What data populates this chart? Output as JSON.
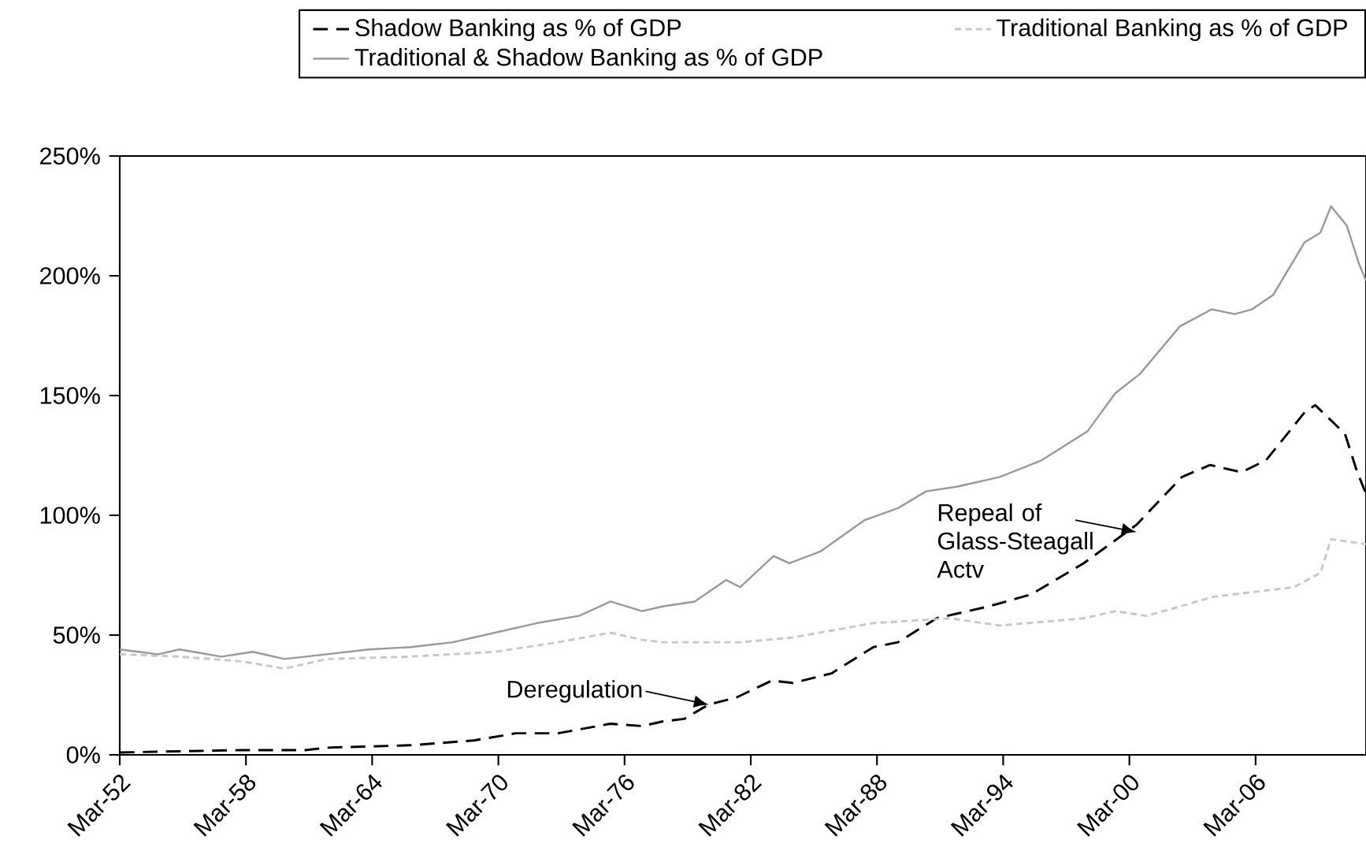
{
  "chart_data": {
    "type": "line",
    "xlim": [
      "1952-03",
      "2011-06"
    ],
    "xticks": [
      {
        "value": "1952-03",
        "label": "Mar-52"
      },
      {
        "value": "1958-03",
        "label": "Mar-58"
      },
      {
        "value": "1964-03",
        "label": "Mar-64"
      },
      {
        "value": "1970-03",
        "label": "Mar-70"
      },
      {
        "value": "1976-03",
        "label": "Mar-76"
      },
      {
        "value": "1982-03",
        "label": "Mar-82"
      },
      {
        "value": "1988-03",
        "label": "Mar-88"
      },
      {
        "value": "1994-03",
        "label": "Mar-94"
      },
      {
        "value": "2000-03",
        "label": "Mar-00"
      },
      {
        "value": "2006-03",
        "label": "Mar-06"
      }
    ],
    "ylim": [
      0,
      250
    ],
    "yticks": [
      {
        "value": 0,
        "label": "0%"
      },
      {
        "value": 50,
        "label": "50%"
      },
      {
        "value": 100,
        "label": "100%"
      },
      {
        "value": 150,
        "label": "150%"
      },
      {
        "value": 200,
        "label": "200%"
      },
      {
        "value": 250,
        "label": "250%"
      }
    ],
    "legend": "top",
    "grid": false,
    "marker": "none",
    "series": [
      {
        "name": "Shadow Banking as % of GDP",
        "color": "#000000",
        "line_style": "dashed",
        "x": [
          "1952-03",
          "1958-01",
          "1961-01",
          "1962-01",
          "1966-01",
          "1969-01",
          "1971-01",
          "1973-01",
          "1975-07",
          "1977-01",
          "1978-01",
          "1979-01",
          "1980-03",
          "1981-07",
          "1983-03",
          "1984-03",
          "1986-01",
          "1988-01",
          "1989-03",
          "1991-01",
          "1993-07",
          "1995-07",
          "1998-01",
          "2000-07",
          "2002-09",
          "2004-01",
          "2005-07",
          "2006-09",
          "2008-07",
          "2009-01",
          "2010-06",
          "2011-01",
          "2011-06"
        ],
        "values": [
          1,
          2,
          2,
          3,
          4,
          6,
          9,
          9,
          13,
          12,
          14,
          15,
          21,
          24,
          31,
          30,
          34,
          45,
          47,
          57,
          62,
          67,
          80,
          96,
          116,
          121,
          118,
          123,
          143,
          146,
          134,
          118,
          109
        ]
      },
      {
        "name": "Traditional Banking as % of GDP",
        "color": "#c8c8c8",
        "line_style": "dotted",
        "x": [
          "1952-03",
          "1955-01",
          "1958-01",
          "1960-01",
          "1962-01",
          "1966-01",
          "1970-01",
          "1973-01",
          "1975-07",
          "1977-01",
          "1978-01",
          "1981-09",
          "1984-03",
          "1988-01",
          "1991-09",
          "1994-01",
          "1998-01",
          "1999-07",
          "2001-01",
          "2004-03",
          "2008-01",
          "2009-04",
          "2009-10",
          "2011-06"
        ],
        "values": [
          42,
          41,
          39,
          36,
          40,
          41,
          43,
          47,
          51,
          48,
          47,
          47,
          49,
          55,
          57,
          54,
          57,
          60,
          58,
          66,
          70,
          76,
          90,
          88
        ]
      },
      {
        "name": "Traditional & Shadow Banking as % of GDP",
        "color": "#999999",
        "line_style": "solid",
        "x": [
          "1952-03",
          "1954-01",
          "1955-01",
          "1957-01",
          "1958-07",
          "1960-01",
          "1962-01",
          "1964-01",
          "1966-01",
          "1968-01",
          "1970-01",
          "1972-01",
          "1974-01",
          "1975-07",
          "1977-01",
          "1978-01",
          "1979-07",
          "1980-03",
          "1981-01",
          "1981-09",
          "1983-04",
          "1984-01",
          "1985-07",
          "1987-08",
          "1989-03",
          "1990-07",
          "1992-01",
          "1994-01",
          "1996-01",
          "1998-03",
          "1999-07",
          "2000-09",
          "2002-08",
          "2004-02",
          "2005-03",
          "2006-01",
          "2007-01",
          "2008-07",
          "2009-04",
          "2009-10",
          "2010-07",
          "2011-02",
          "2011-06"
        ],
        "values": [
          44,
          42,
          44,
          41,
          43,
          40,
          42,
          44,
          45,
          47,
          51,
          55,
          58,
          64,
          60,
          62,
          64,
          68,
          73,
          70,
          83,
          80,
          85,
          98,
          103,
          110,
          112,
          116,
          123,
          135,
          151,
          159,
          179,
          186,
          184,
          186,
          192,
          214,
          218,
          229,
          221,
          205,
          198
        ]
      }
    ],
    "annotations": [
      {
        "text": "Deregulation",
        "x": "1980-03",
        "y": 21
      },
      {
        "text": "Repeal of Glass-Steagall Actv",
        "x": "2000-07",
        "y": 93
      }
    ]
  }
}
